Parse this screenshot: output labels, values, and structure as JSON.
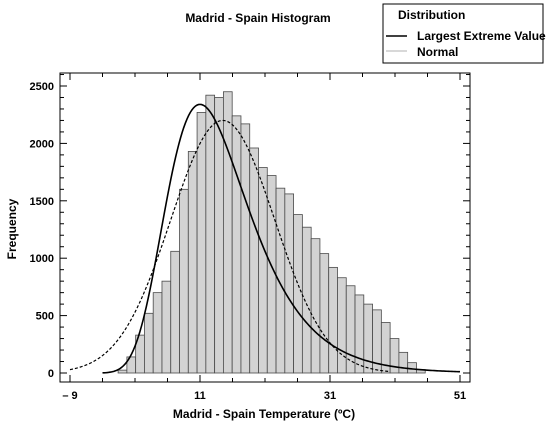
{
  "chart_data": {
    "type": "bar",
    "title": "Madrid - Spain Histogram",
    "xlabel": "Madrid - Spain Temperature (ºC)",
    "ylabel": "Frequency",
    "xlim": [
      -9,
      51
    ],
    "ylim": [
      0,
      2600
    ],
    "xticks": [
      -9,
      11,
      31,
      51
    ],
    "xtick_labels": [
      "– 9",
      "11",
      "31",
      "51"
    ],
    "yticks": [
      0,
      500,
      1000,
      1500,
      2000,
      2500
    ],
    "yticks_minor_step": 100,
    "grid": false,
    "bins": {
      "start": -1.6,
      "width": 1.35,
      "counts": [
        25,
        140,
        330,
        520,
        700,
        800,
        1060,
        1600,
        1930,
        2270,
        2420,
        2400,
        2450,
        2240,
        2170,
        1960,
        1790,
        1720,
        1610,
        1560,
        1380,
        1270,
        1170,
        1040,
        920,
        830,
        760,
        680,
        600,
        550,
        440,
        300,
        180,
        90,
        30
      ]
    },
    "series": [
      {
        "name": "Largest Extreme Value",
        "style": "solid",
        "color": "#000000",
        "mode": 11,
        "peak": 2340,
        "scale": 6.3
      },
      {
        "name": "Normal",
        "style": "dashed",
        "color": "#000000",
        "mean": 14.5,
        "sd": 8.0,
        "peak": 2200
      }
    ],
    "legend": {
      "title": "Distribution",
      "entries": [
        "Largest Extreme Value",
        "Normal"
      ],
      "position": "top-right"
    },
    "colors": {
      "bar_fill": "#d3d3d3",
      "bar_stroke": "#4a4a4a",
      "line": "#000000"
    }
  }
}
